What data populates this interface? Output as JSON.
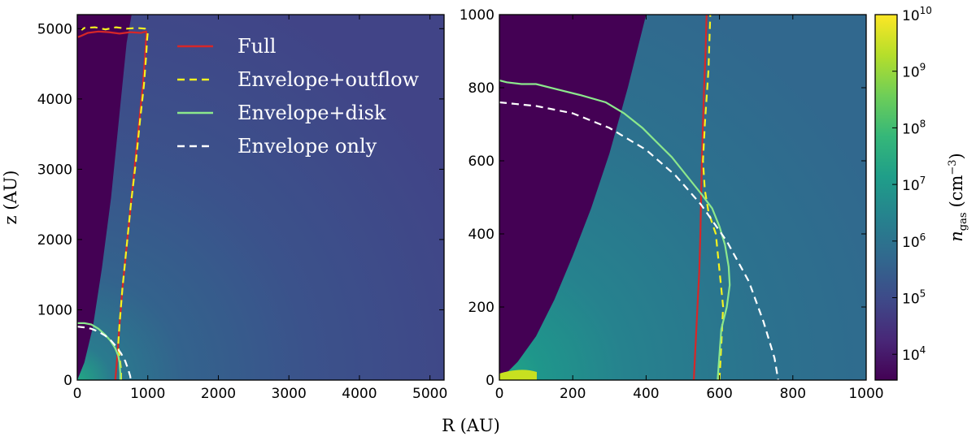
{
  "chart_data": [
    {
      "type": "heatmap",
      "panel": "left",
      "xlabel": "R (AU)",
      "ylabel": "z (AU)",
      "xlim": [
        0,
        5200
      ],
      "ylim": [
        0,
        5200
      ],
      "xticks": [
        0,
        1000,
        2000,
        3000,
        4000,
        5000
      ],
      "yticks": [
        0,
        1000,
        2000,
        3000,
        4000,
        5000
      ],
      "legend": {
        "placement": "upper-center",
        "entries": [
          {
            "label": "Full",
            "color": "#d62728",
            "style": "solid"
          },
          {
            "label": "Envelope+outflow",
            "color": "#f5f31f",
            "style": "dashed"
          },
          {
            "label": "Envelope+disk",
            "color": "#8ce88c",
            "style": "solid"
          },
          {
            "label": "Envelope only",
            "color": "#ffffff",
            "style": "dashed"
          }
        ]
      },
      "cavity_boundary": [
        [
          0,
          0
        ],
        [
          100,
          250
        ],
        [
          220,
          750
        ],
        [
          350,
          1600
        ],
        [
          480,
          2600
        ],
        [
          600,
          3800
        ],
        [
          700,
          4800
        ],
        [
          770,
          5200
        ]
      ],
      "series": [
        {
          "name": "Full",
          "color": "#d62728",
          "style": "solid",
          "x": [
            540,
            560,
            580,
            600,
            640,
            700,
            760,
            820,
            880,
            930,
            960,
            975,
            980,
            975,
            900,
            750,
            600,
            450,
            300,
            150,
            60,
            10
          ],
          "y": [
            0,
            250,
            500,
            800,
            1300,
            1900,
            2500,
            3100,
            3700,
            4200,
            4600,
            4850,
            4950,
            4960,
            4940,
            4950,
            4930,
            4950,
            4960,
            4940,
            4900,
            4880
          ]
        },
        {
          "name": "Envelope+outflow",
          "color": "#f5f31f",
          "style": "dashed",
          "x": [
            620,
            620,
            580,
            600,
            640,
            700,
            760,
            830,
            890,
            945,
            975,
            990,
            1000,
            960,
            850,
            700,
            550,
            400,
            250,
            100,
            60
          ],
          "y": [
            0,
            150,
            500,
            800,
            1300,
            1900,
            2500,
            3100,
            3700,
            4200,
            4600,
            4850,
            4950,
            5000,
            5010,
            5000,
            5020,
            4990,
            5020,
            5010,
            4980
          ]
        },
        {
          "name": "Envelope+disk",
          "color": "#8ce88c",
          "style": "solid",
          "x": [
            0,
            100,
            200,
            300,
            400,
            470,
            540,
            580,
            600,
            610,
            610
          ],
          "y": [
            810,
            810,
            790,
            730,
            640,
            560,
            450,
            350,
            250,
            100,
            0
          ]
        },
        {
          "name": "Envelope only",
          "color": "#ffffff",
          "style": "dashed",
          "x": [
            0,
            100,
            200,
            300,
            400,
            480,
            550,
            620,
            680,
            720,
            750,
            760
          ],
          "y": [
            760,
            750,
            730,
            690,
            630,
            560,
            480,
            380,
            270,
            160,
            60,
            0
          ]
        }
      ]
    },
    {
      "type": "heatmap",
      "panel": "right",
      "xlabel": "",
      "ylabel": "",
      "xlim": [
        0,
        1000
      ],
      "ylim": [
        0,
        1000
      ],
      "xticks": [
        0,
        200,
        400,
        600,
        800,
        1000
      ],
      "yticks": [
        0,
        200,
        400,
        600,
        800,
        1000
      ],
      "cavity_boundary": [
        [
          0,
          0
        ],
        [
          50,
          50
        ],
        [
          100,
          120
        ],
        [
          150,
          220
        ],
        [
          200,
          340
        ],
        [
          250,
          470
        ],
        [
          300,
          620
        ],
        [
          350,
          800
        ],
        [
          400,
          1000
        ]
      ],
      "series": [
        {
          "name": "Full",
          "color": "#d62728",
          "style": "solid",
          "x": [
            530,
            535,
            540,
            545,
            548,
            550,
            552,
            555,
            558,
            562,
            565
          ],
          "y": [
            0,
            100,
            200,
            300,
            400,
            500,
            600,
            700,
            800,
            900,
            1000
          ]
        },
        {
          "name": "Envelope+outflow",
          "color": "#f5f31f",
          "style": "dashed",
          "x": [
            600,
            605,
            610,
            600,
            590,
            570,
            560,
            555,
            560,
            570,
            575
          ],
          "y": [
            0,
            100,
            200,
            300,
            400,
            460,
            520,
            600,
            700,
            850,
            1000
          ]
        },
        {
          "name": "Envelope+disk",
          "color": "#8ce88c",
          "style": "solid",
          "x": [
            0,
            20,
            60,
            100,
            160,
            220,
            290,
            340,
            390,
            430,
            470,
            510,
            550,
            580,
            600,
            615,
            625,
            628,
            620,
            605,
            595
          ],
          "y": [
            820,
            815,
            810,
            810,
            795,
            780,
            760,
            730,
            690,
            650,
            610,
            560,
            510,
            470,
            420,
            370,
            310,
            260,
            200,
            140,
            0
          ]
        },
        {
          "name": "Envelope only",
          "color": "#ffffff",
          "style": "dashed",
          "x": [
            0,
            100,
            200,
            300,
            400,
            480,
            550,
            620,
            680,
            720,
            750,
            760
          ],
          "y": [
            760,
            750,
            730,
            690,
            630,
            560,
            480,
            380,
            270,
            160,
            60,
            0
          ]
        }
      ]
    }
  ],
  "colorbar": {
    "label_symbol": "n",
    "label_subscript": "gas",
    "label_unit_open": "(cm",
    "label_unit_exp": "−3",
    "label_unit_close": ")",
    "scale": "log",
    "range": [
      3500.0,
      10000000000.0
    ],
    "tick_base": "10",
    "tick_exponents": [
      "4",
      "5",
      "6",
      "7",
      "8",
      "9",
      "10"
    ],
    "colors": [
      "#440154",
      "#482878",
      "#3e4a89",
      "#31688e",
      "#26828e",
      "#1f9e89",
      "#35b779",
      "#6ece58",
      "#b5de2b",
      "#fde725"
    ]
  }
}
